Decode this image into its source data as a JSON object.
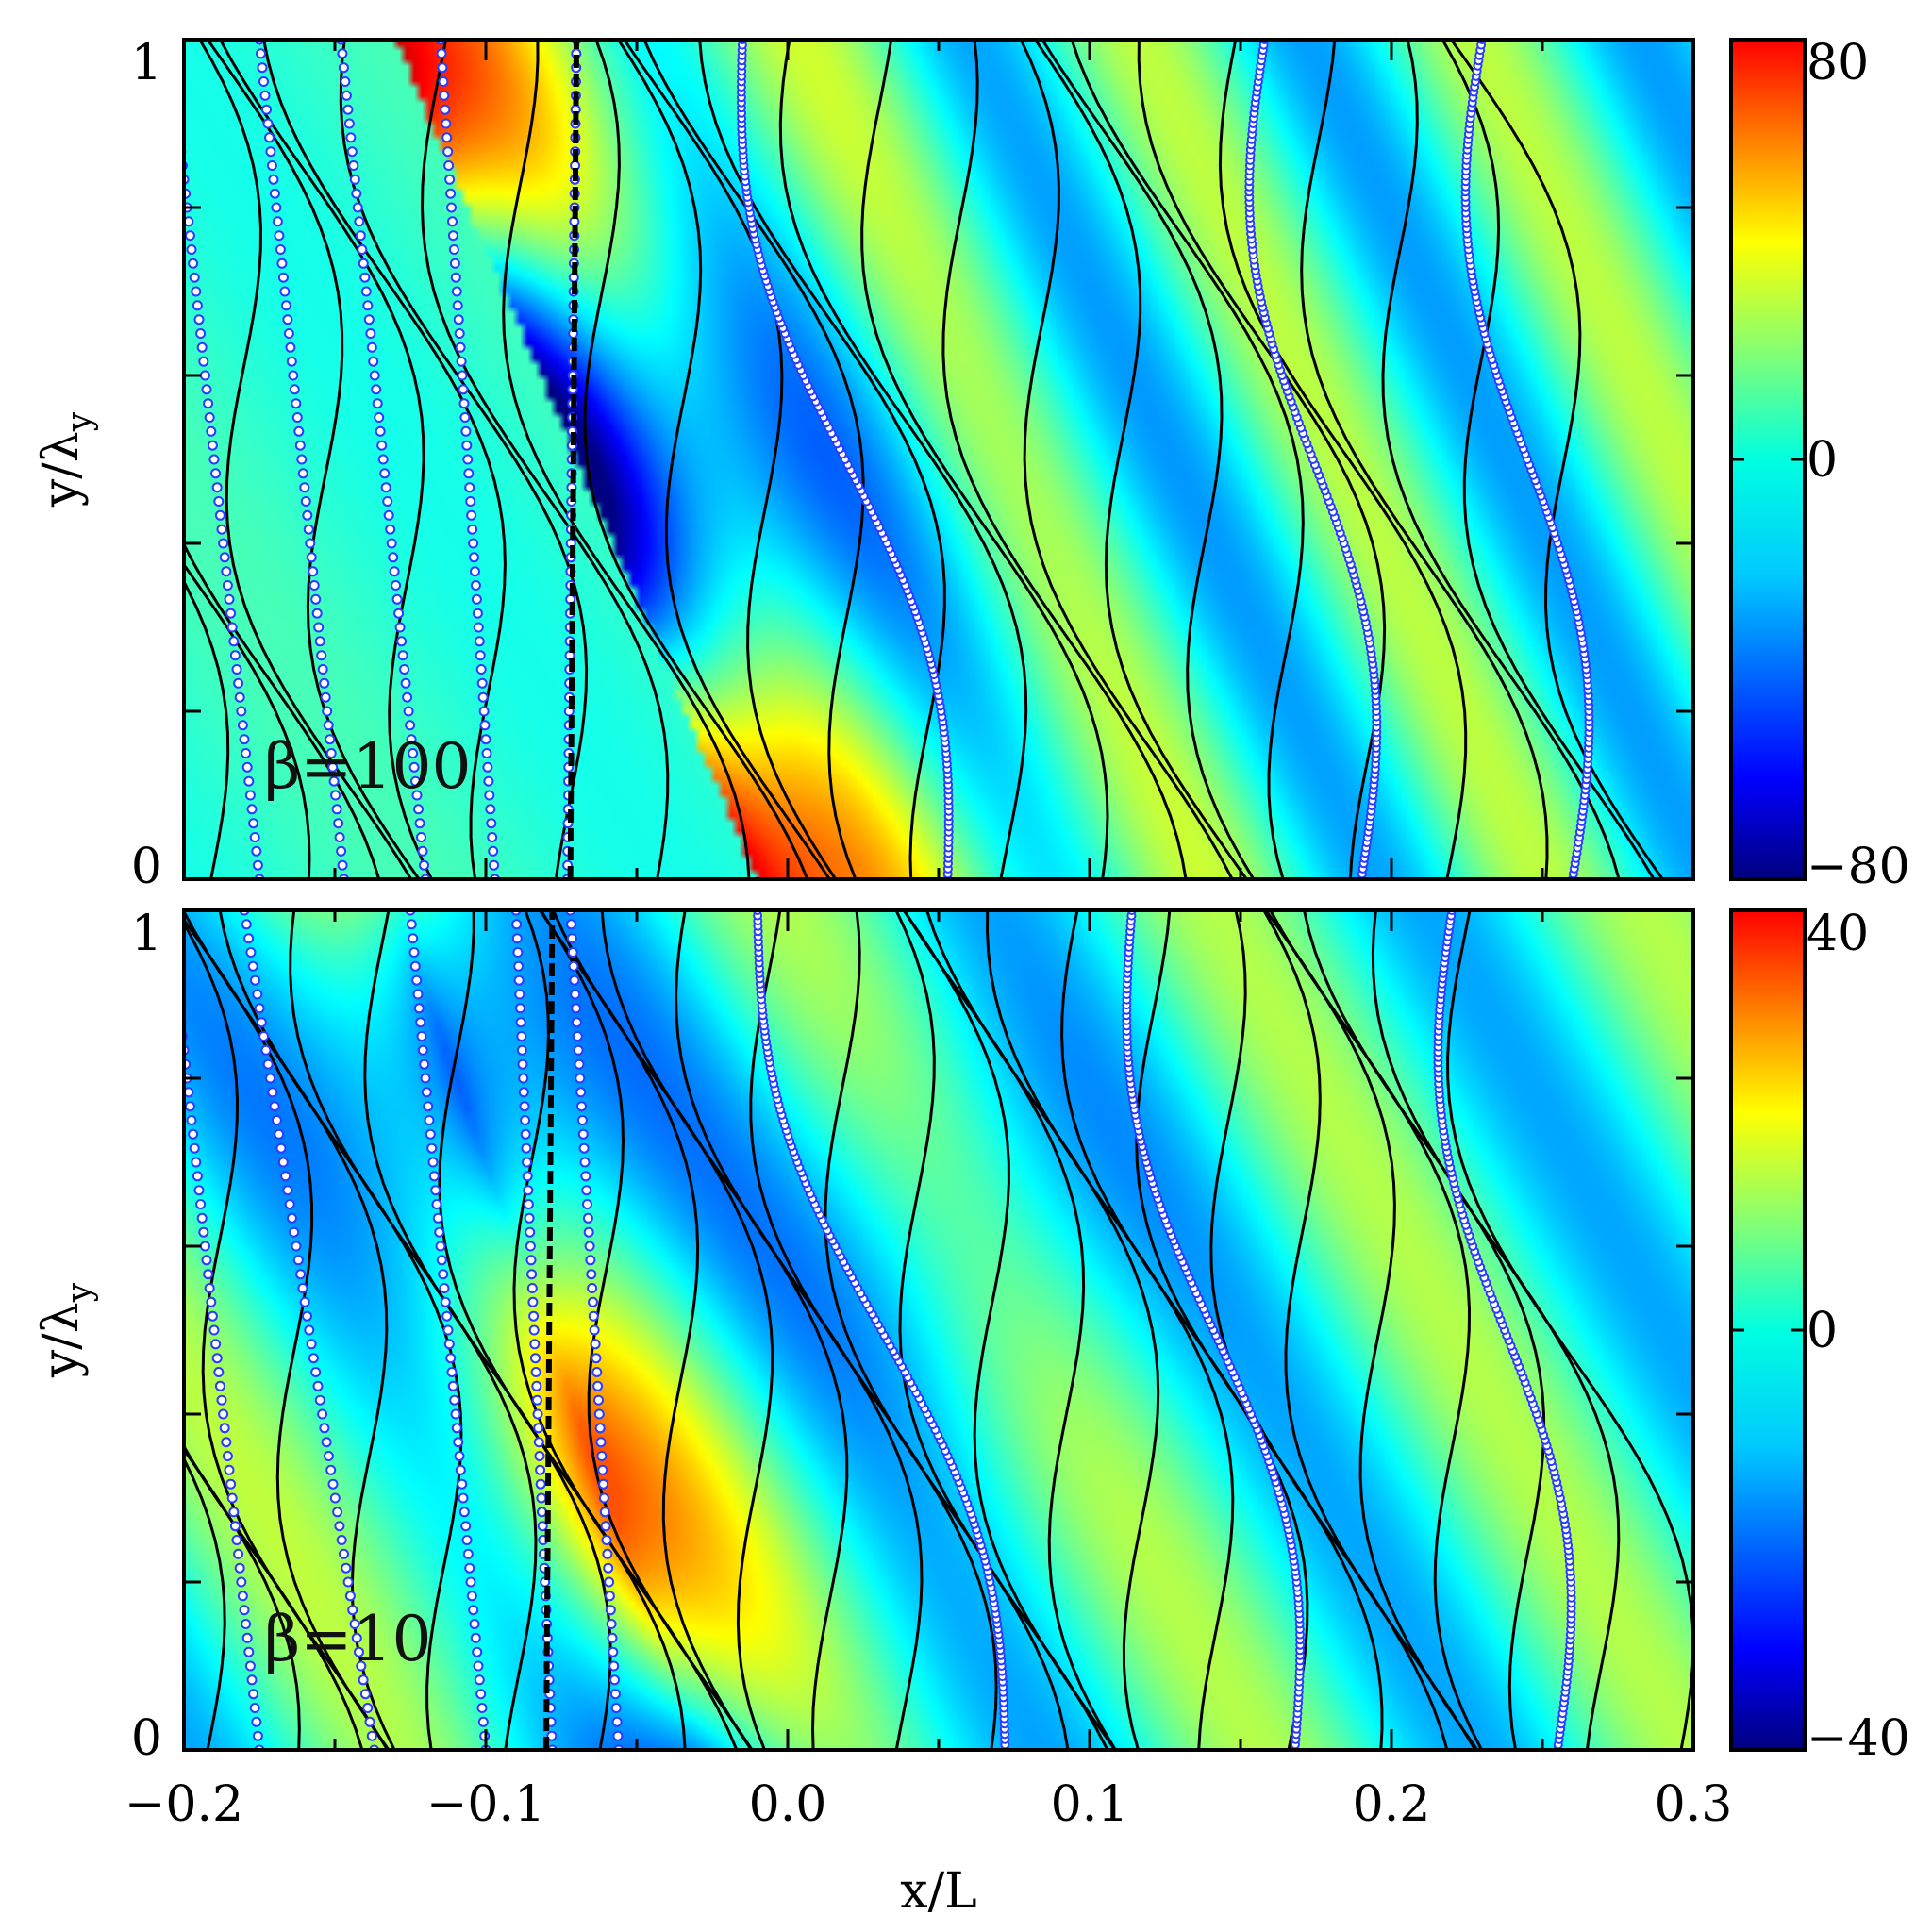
{
  "chart_data": [
    {
      "type": "heatmap",
      "panel": "top",
      "annotation": "β=100",
      "xlabel": "",
      "ylabel": "y/λ_y",
      "ylabel_main": "y/λ",
      "ylabel_sub": "y",
      "xlim": [
        -0.2,
        0.3
      ],
      "ylim": [
        0,
        1
      ],
      "y_tick_labels": [
        "0",
        "1"
      ],
      "y_ticks": [
        0,
        1
      ],
      "colorbar": {
        "min": -80,
        "max": 80,
        "tick_labels": [
          "−80",
          "0",
          "80"
        ],
        "ticks": [
          -80,
          0,
          80
        ]
      },
      "field": {
        "amplitude": 80,
        "ridge_x": -0.07,
        "tilt": 0.12
      },
      "boundary_x": -0.072,
      "dotted_lines": [
        {
          "x0": -0.175,
          "x1": -0.205,
          "style": "dots"
        },
        {
          "x0": -0.147,
          "x1": -0.175,
          "style": "dots"
        },
        {
          "x0": -0.12,
          "x1": -0.148,
          "style": "dots"
        },
        {
          "x0": -0.097,
          "x1": -0.115,
          "style": "dots"
        },
        {
          "x0": -0.073,
          "x1": -0.07,
          "style": "dots"
        },
        {
          "x0": 0.053,
          "x1": -0.015,
          "style": "solid-dots"
        },
        {
          "x0": 0.19,
          "x1": 0.158,
          "style": "solid-dots"
        },
        {
          "x0": 0.26,
          "x1": 0.23,
          "style": "solid-dots"
        }
      ]
    },
    {
      "type": "heatmap",
      "panel": "bottom",
      "annotation": "β=10",
      "xlabel": "x/L",
      "ylabel": "y/λ_y",
      "ylabel_main": "y/λ",
      "ylabel_sub": "y",
      "xlim": [
        -0.2,
        0.3
      ],
      "ylim": [
        0,
        1
      ],
      "x_tick_labels": [
        "−0.2",
        "−0.1",
        "0.0",
        "0.1",
        "0.2",
        "0.3"
      ],
      "x_ticks": [
        -0.2,
        -0.1,
        0.0,
        0.1,
        0.2,
        0.3
      ],
      "y_tick_labels": [
        "0",
        "1"
      ],
      "y_ticks": [
        0,
        1
      ],
      "colorbar": {
        "min": -40,
        "max": 40,
        "tick_labels": [
          "−40",
          "0",
          "40"
        ],
        "ticks": [
          -40,
          0,
          40
        ]
      },
      "field": {
        "amplitude": 40,
        "ridge_x": -0.08,
        "tilt": 0.1
      },
      "boundary_x": -0.08,
      "dotted_lines": [
        {
          "x0": -0.175,
          "x1": -0.205,
          "style": "dots"
        },
        {
          "x0": -0.137,
          "x1": -0.18,
          "style": "dots"
        },
        {
          "x0": -0.1,
          "x1": -0.125,
          "style": "dots"
        },
        {
          "x0": -0.078,
          "x1": -0.09,
          "style": "dots"
        },
        {
          "x0": -0.056,
          "x1": -0.072,
          "style": "dots"
        },
        {
          "x0": 0.072,
          "x1": -0.01,
          "style": "solid-dots"
        },
        {
          "x0": 0.168,
          "x1": 0.114,
          "style": "solid-dots"
        },
        {
          "x0": 0.255,
          "x1": 0.22,
          "style": "solid-dots"
        }
      ]
    }
  ]
}
